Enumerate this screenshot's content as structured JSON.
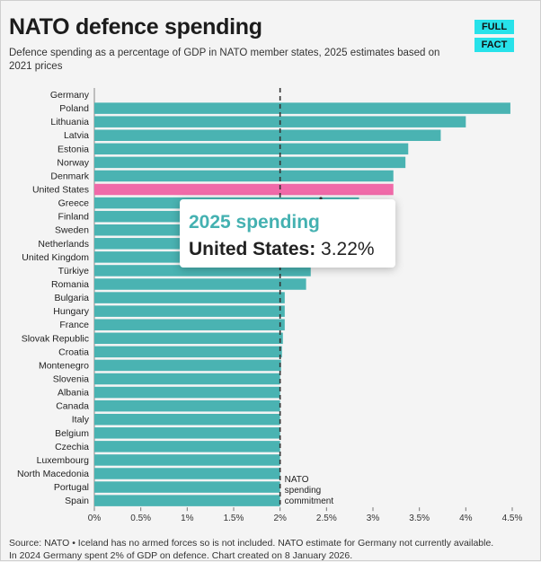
{
  "header": {
    "title": "NATO defence spending",
    "subtitle": "Defence spending as a percentage of GDP in NATO member states, 2025 estimates based on 2021 prices"
  },
  "logo": {
    "line1": "FULL",
    "line2": "FACT",
    "color": "#27e2ea"
  },
  "chart_data": {
    "type": "bar",
    "orientation": "horizontal",
    "categories": [
      "Germany",
      "Poland",
      "Lithuania",
      "Latvia",
      "Estonia",
      "Norway",
      "Denmark",
      "United States",
      "Greece",
      "Finland",
      "Sweden",
      "Netherlands",
      "United Kingdom",
      "Türkiye",
      "Romania",
      "Bulgaria",
      "Hungary",
      "France",
      "Slovak Republic",
      "Croatia",
      "Montenegro",
      "Slovenia",
      "Albania",
      "Canada",
      "Italy",
      "Belgium",
      "Czechia",
      "Luxembourg",
      "North Macedonia",
      "Portugal",
      "Spain"
    ],
    "values": [
      null,
      4.48,
      4.0,
      3.73,
      3.38,
      3.35,
      3.22,
      3.22,
      2.85,
      2.4,
      2.35,
      2.2,
      2.4,
      2.33,
      2.28,
      2.05,
      2.05,
      2.05,
      2.03,
      2.02,
      2.01,
      2.0,
      2.0,
      2.0,
      2.0,
      2.0,
      2.0,
      2.0,
      2.0,
      2.0,
      2.0
    ],
    "xlim": [
      0,
      4.5
    ],
    "x_ticks": [
      "0%",
      "0.5%",
      "1%",
      "1.5%",
      "2%",
      "2.5%",
      "3%",
      "3.5%",
      "4%",
      "4.5%"
    ],
    "x_tick_values": [
      0,
      0.5,
      1,
      1.5,
      2,
      2.5,
      3,
      3.5,
      4,
      4.5
    ],
    "reference_line": {
      "value": 2,
      "label_lines": [
        "NATO",
        "spending",
        "commitment"
      ]
    },
    "highlight": "United States",
    "bar_color": "#4ab3b2",
    "highlight_color": "#f06aa9",
    "grid": false
  },
  "tooltip": {
    "title": "2025 spending",
    "country": "United States:",
    "value": "3.22%",
    "title_color": "#44b1b1"
  },
  "source": {
    "line1": "Source: NATO • Iceland has no armed forces so is not included. NATO estimate for Germany not currently available.",
    "line2": "In 2024 Germany spent 2% of GDP on defence. Chart created on 8 January 2026."
  }
}
